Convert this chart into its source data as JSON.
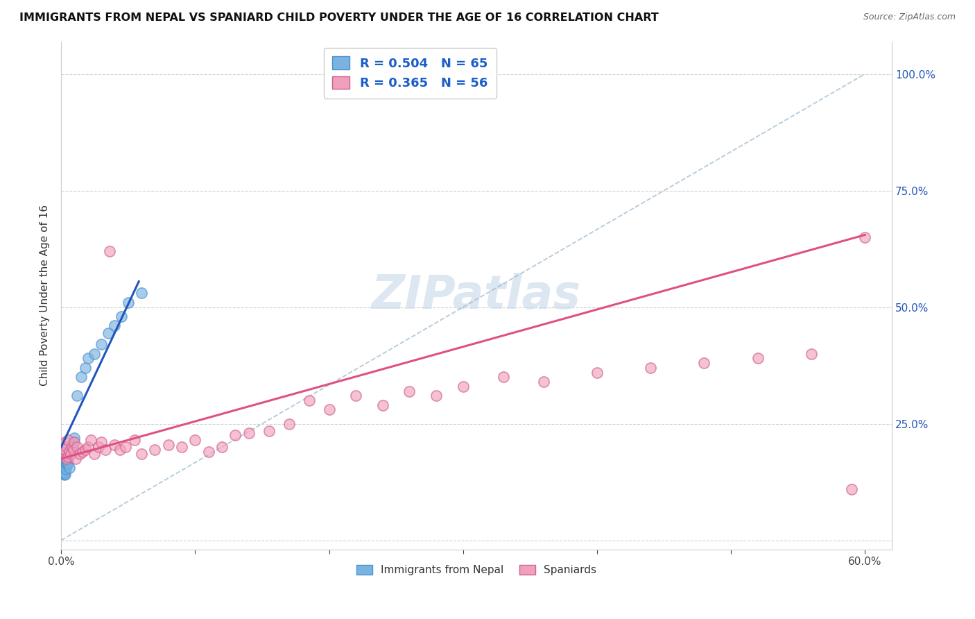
{
  "title": "IMMIGRANTS FROM NEPAL VS SPANIARD CHILD POVERTY UNDER THE AGE OF 16 CORRELATION CHART",
  "source": "Source: ZipAtlas.com",
  "ylabel": "Child Poverty Under the Age of 16",
  "nepal_color": "#7ab3e0",
  "nepal_edge": "#4a90d0",
  "spain_color": "#f0a0bc",
  "spain_edge": "#d06090",
  "nepal_line_color": "#2255bb",
  "spain_line_color": "#e05080",
  "ref_line_color": "#a0bcd0",
  "nepal_R": 0.504,
  "nepal_N": 65,
  "spain_R": 0.365,
  "spain_N": 56,
  "watermark_text": "ZIPatlas",
  "watermark_color": "#c5d8ea",
  "background_color": "#ffffff",
  "legend_text_color": "#1a5fc8",
  "nepal_scatter_x": [
    0.0002,
    0.0003,
    0.0004,
    0.0004,
    0.0005,
    0.0005,
    0.0006,
    0.0006,
    0.0007,
    0.0007,
    0.0008,
    0.0008,
    0.0008,
    0.0009,
    0.0009,
    0.001,
    0.001,
    0.001,
    0.001,
    0.0012,
    0.0012,
    0.0013,
    0.0013,
    0.0014,
    0.0015,
    0.0015,
    0.0016,
    0.0016,
    0.0017,
    0.0018,
    0.002,
    0.002,
    0.0021,
    0.0022,
    0.0023,
    0.0024,
    0.0025,
    0.0026,
    0.0027,
    0.003,
    0.003,
    0.0032,
    0.0033,
    0.0035,
    0.004,
    0.004,
    0.0045,
    0.005,
    0.005,
    0.006,
    0.007,
    0.008,
    0.009,
    0.01,
    0.012,
    0.015,
    0.018,
    0.02,
    0.025,
    0.03,
    0.035,
    0.04,
    0.045,
    0.05,
    0.06
  ],
  "nepal_scatter_y": [
    0.175,
    0.165,
    0.16,
    0.17,
    0.155,
    0.168,
    0.15,
    0.162,
    0.158,
    0.172,
    0.145,
    0.16,
    0.175,
    0.155,
    0.165,
    0.15,
    0.16,
    0.172,
    0.145,
    0.158,
    0.168,
    0.152,
    0.163,
    0.148,
    0.155,
    0.17,
    0.142,
    0.16,
    0.165,
    0.15,
    0.155,
    0.172,
    0.148,
    0.162,
    0.17,
    0.14,
    0.155,
    0.168,
    0.145,
    0.158,
    0.175,
    0.142,
    0.168,
    0.152,
    0.175,
    0.165,
    0.168,
    0.175,
    0.165,
    0.155,
    0.2,
    0.195,
    0.21,
    0.22,
    0.31,
    0.35,
    0.37,
    0.39,
    0.4,
    0.42,
    0.445,
    0.46,
    0.48,
    0.51,
    0.53
  ],
  "spain_scatter_x": [
    0.001,
    0.002,
    0.003,
    0.003,
    0.004,
    0.004,
    0.005,
    0.005,
    0.006,
    0.007,
    0.008,
    0.009,
    0.01,
    0.011,
    0.012,
    0.014,
    0.016,
    0.018,
    0.02,
    0.022,
    0.025,
    0.028,
    0.03,
    0.033,
    0.036,
    0.04,
    0.044,
    0.048,
    0.055,
    0.06,
    0.07,
    0.08,
    0.09,
    0.1,
    0.11,
    0.12,
    0.13,
    0.14,
    0.155,
    0.17,
    0.185,
    0.2,
    0.22,
    0.24,
    0.26,
    0.28,
    0.3,
    0.33,
    0.36,
    0.4,
    0.44,
    0.48,
    0.52,
    0.56,
    0.59,
    0.6
  ],
  "spain_scatter_y": [
    0.2,
    0.185,
    0.195,
    0.21,
    0.175,
    0.2,
    0.18,
    0.215,
    0.19,
    0.185,
    0.2,
    0.195,
    0.21,
    0.175,
    0.2,
    0.185,
    0.19,
    0.195,
    0.2,
    0.215,
    0.185,
    0.2,
    0.21,
    0.195,
    0.62,
    0.205,
    0.195,
    0.2,
    0.215,
    0.185,
    0.195,
    0.205,
    0.2,
    0.215,
    0.19,
    0.2,
    0.225,
    0.23,
    0.235,
    0.25,
    0.3,
    0.28,
    0.31,
    0.29,
    0.32,
    0.31,
    0.33,
    0.35,
    0.34,
    0.36,
    0.37,
    0.38,
    0.39,
    0.4,
    0.11,
    0.65
  ],
  "nepal_line_x": [
    0.0,
    0.058
  ],
  "nepal_line_y": [
    0.2,
    0.555
  ],
  "spain_line_x": [
    0.0,
    0.6
  ],
  "spain_line_y": [
    0.175,
    0.655
  ],
  "ref_line_x": [
    0.0,
    0.6
  ],
  "ref_line_y": [
    0.0,
    1.0
  ],
  "xlim": [
    0.0,
    0.62
  ],
  "ylim": [
    -0.02,
    1.07
  ],
  "xtick_positions": [
    0.0,
    0.1,
    0.2,
    0.3,
    0.4,
    0.5,
    0.6
  ],
  "xtick_labels": [
    "0.0%",
    "",
    "",
    "",
    "",
    "",
    "60.0%"
  ],
  "ytick_right_positions": [
    0.25,
    0.5,
    0.75,
    1.0
  ],
  "ytick_right_labels": [
    "25.0%",
    "50.0%",
    "75.0%",
    "100.0%"
  ]
}
